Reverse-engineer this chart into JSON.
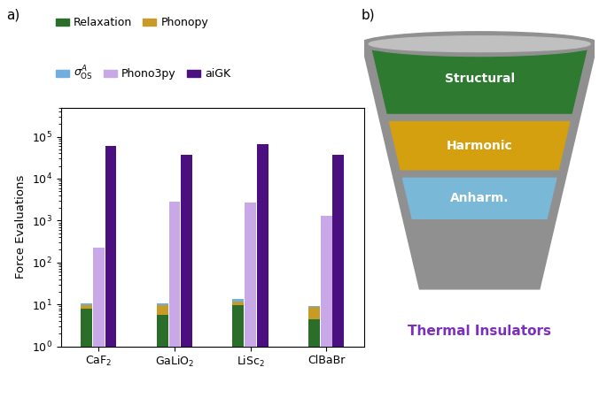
{
  "categories": [
    "CaF$_2$",
    "GaLiO$_2$",
    "LiSc$_2$",
    "ClBaBr"
  ],
  "bar_width": 0.15,
  "colors": {
    "relaxation": "#2a6e2a",
    "phonopy": "#c89a28",
    "sigma_os": "#70aee0",
    "phono3py": "#c9a8e8",
    "aigk": "#4a1080"
  },
  "data": {
    "relaxation": [
      8.0,
      5.5,
      9.5,
      4.5
    ],
    "phonopy_total": [
      9.8,
      9.5,
      11.5,
      8.5
    ],
    "sigma_total": [
      10.5,
      10.5,
      13.5,
      9.2
    ],
    "phono3py": [
      220,
      2800,
      2700,
      1300
    ],
    "aigk": [
      60000,
      38000,
      65000,
      38000
    ]
  },
  "ylim": [
    1,
    500000
  ],
  "panel_a_label": "a)",
  "panel_b_label": "b)",
  "ylabel": "Force Evaluations",
  "legend_labels": [
    "Relaxation",
    "Phonopy",
    "$\\sigma^A_{\\mathrm{OS}}$",
    "Phono3py",
    "aiGK"
  ],
  "funnel_labels": [
    "Structural",
    "Harmonic",
    "Anharm."
  ],
  "funnel_colors": [
    "#2d7a30",
    "#d4a010",
    "#7ab8d8"
  ],
  "funnel_gray": "#909090",
  "funnel_rim_color": "#c0c0c0",
  "funnel_text": "Thermal Insulators",
  "funnel_text_color": "#7B2FBE"
}
